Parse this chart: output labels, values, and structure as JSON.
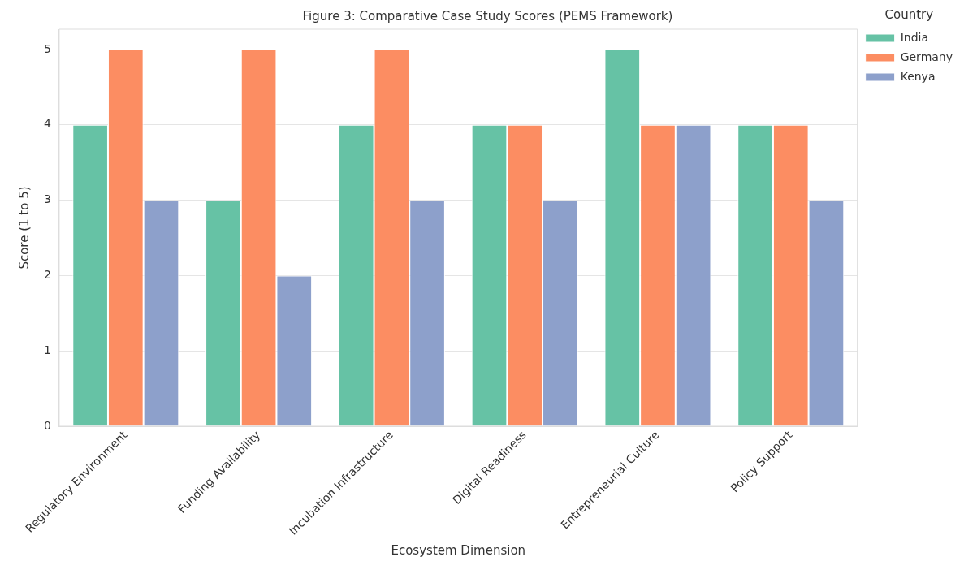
{
  "chart_data": {
    "type": "bar",
    "title": "Figure 3: Comparative Case Study Scores (PEMS Framework)",
    "xlabel": "Ecosystem Dimension",
    "ylabel": "Score (1 to 5)",
    "legend_title": "Country",
    "categories": [
      "Regulatory Environment",
      "Funding Availability",
      "Incubation Infrastructure",
      "Digital Readiness",
      "Entrepreneurial Culture",
      "Policy Support"
    ],
    "series": [
      {
        "name": "India",
        "color": "#66c2a5",
        "values": [
          4,
          3,
          4,
          4,
          5,
          4
        ]
      },
      {
        "name": "Germany",
        "color": "#fc8d62",
        "values": [
          5,
          5,
          5,
          4,
          4,
          4
        ]
      },
      {
        "name": "Kenya",
        "color": "#8da0cb",
        "values": [
          3,
          2,
          3,
          3,
          4,
          3
        ]
      }
    ],
    "ylim": [
      0,
      5.27
    ],
    "yticks": [
      0,
      1,
      2,
      3,
      4,
      5
    ],
    "grid": "y",
    "legend": "right"
  }
}
